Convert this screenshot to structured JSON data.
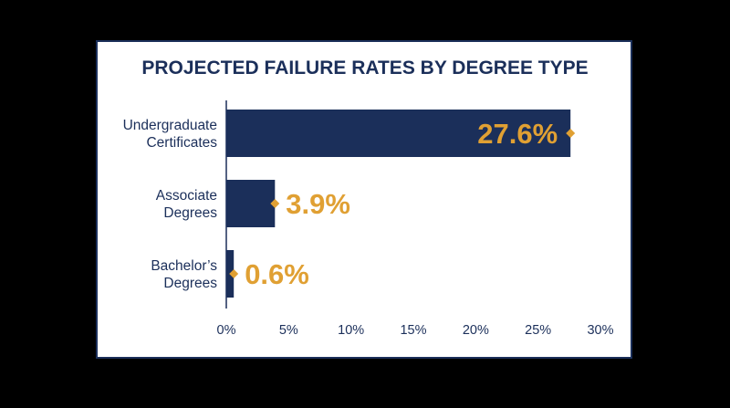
{
  "chart_data": {
    "type": "bar",
    "orientation": "horizontal",
    "title": "PROJECTED FAILURE RATES BY DEGREE TYPE",
    "categories": [
      [
        "Undergraduate",
        "Certificates"
      ],
      [
        "Associate",
        "Degrees"
      ],
      [
        "Bachelor’s",
        "Degrees"
      ]
    ],
    "values": [
      27.6,
      3.9,
      0.6
    ],
    "value_labels": [
      "27.6%",
      "3.9%",
      "0.6%"
    ],
    "xlim": [
      0,
      30
    ],
    "x_ticks": [
      0,
      5,
      10,
      15,
      20,
      25,
      30
    ],
    "x_tick_labels": [
      "0%",
      "5%",
      "10%",
      "15%",
      "20%",
      "25%",
      "30%"
    ],
    "grid": false,
    "legend": "none",
    "colors": {
      "bar": "#1b2f5a",
      "value_label": "#e0a033",
      "text": "#1b2f5a",
      "axis": "#1b2f5a",
      "background": "#ffffff",
      "page_background": "#000000"
    }
  }
}
